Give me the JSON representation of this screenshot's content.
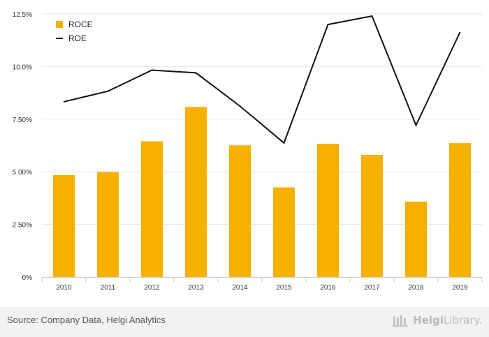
{
  "chart_data": {
    "type": "bar",
    "categories": [
      "2010",
      "2011",
      "2012",
      "2013",
      "2014",
      "2015",
      "2016",
      "2017",
      "2018",
      "2019"
    ],
    "series": [
      {
        "name": "ROCE",
        "type": "bar",
        "color": "#f7b000",
        "values": [
          4.84,
          4.99,
          6.45,
          8.08,
          6.26,
          4.26,
          6.33,
          5.8,
          3.58,
          6.36
        ]
      },
      {
        "name": "ROE",
        "type": "line",
        "color": "#111111",
        "values": [
          8.33,
          8.83,
          9.83,
          9.7,
          8.12,
          6.37,
          12.0,
          12.4,
          7.21,
          11.63
        ]
      }
    ],
    "y_ticks": [
      "0%",
      "2.50%",
      "5.00%",
      "7.50%",
      "10.0%",
      "12.5%"
    ],
    "ylim": [
      0,
      12.5
    ],
    "grid": true,
    "legend_position": "top-left"
  },
  "legend": [
    {
      "label": "ROCE",
      "icon": "square-swatch"
    },
    {
      "label": "ROE",
      "icon": "line-swatch"
    }
  ],
  "footer": {
    "source": "Source: Company Data, Helgi Analytics",
    "logo_bold": "Helgi",
    "logo_rest": "Library."
  }
}
